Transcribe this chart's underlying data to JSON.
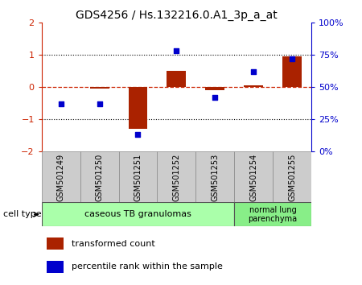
{
  "title": "GDS4256 / Hs.132216.0.A1_3p_a_at",
  "samples": [
    "GSM501249",
    "GSM501250",
    "GSM501251",
    "GSM501252",
    "GSM501253",
    "GSM501254",
    "GSM501255"
  ],
  "bar_values": [
    0.0,
    -0.05,
    -1.3,
    0.5,
    -0.1,
    0.05,
    0.95
  ],
  "dot_values": [
    37,
    37,
    13,
    78,
    42,
    62,
    72
  ],
  "bar_color": "#aa2200",
  "dot_color": "#0000cc",
  "ylim_left": [
    -2,
    2
  ],
  "ylim_right": [
    0,
    100
  ],
  "yticks_left": [
    -2,
    -1,
    0,
    1,
    2
  ],
  "yticks_right": [
    0,
    25,
    50,
    75,
    100
  ],
  "ytick_right_labels": [
    "0%",
    "25%",
    "50%",
    "75%",
    "100%"
  ],
  "group1_label": "caseous TB granulomas",
  "group2_label": "normal lung\nparenchyma",
  "group1_indices": [
    0,
    1,
    2,
    3,
    4
  ],
  "group2_indices": [
    5,
    6
  ],
  "group1_color": "#aaffaa",
  "group2_color": "#88ee88",
  "cell_type_label": "cell type",
  "legend1_label": "transformed count",
  "legend2_label": "percentile rank within the sample",
  "axis_color_left": "#cc2200",
  "axis_color_right": "#0000cc",
  "sample_box_color": "#cccccc",
  "sample_box_edge": "#888888"
}
